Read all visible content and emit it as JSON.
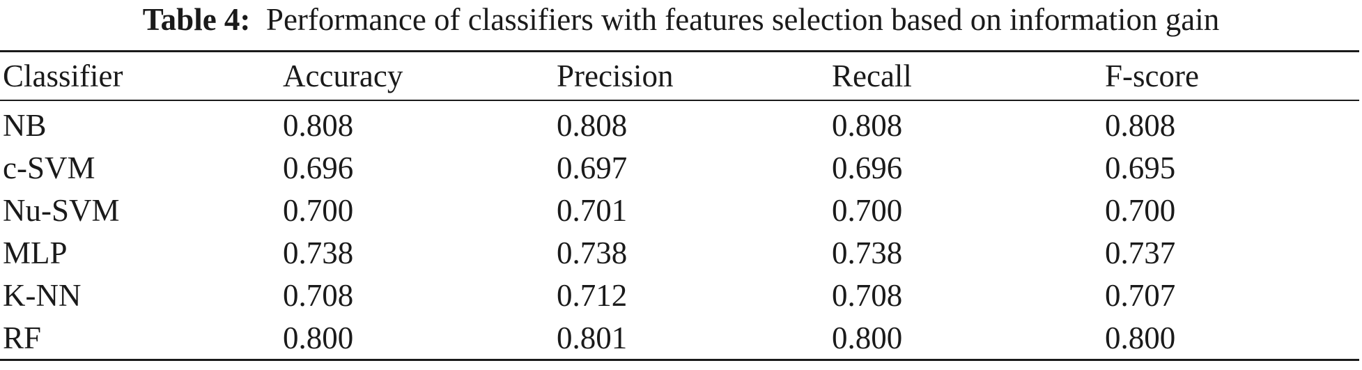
{
  "caption": {
    "label": "Table 4:",
    "text": "Performance of classifiers with features selection based on information gain"
  },
  "table": {
    "headers": [
      "Classifier",
      "Accuracy",
      "Precision",
      "Recall",
      "F-score"
    ],
    "rows": [
      [
        "NB",
        "0.808",
        "0.808",
        "0.808",
        "0.808"
      ],
      [
        "c-SVM",
        "0.696",
        "0.697",
        "0.696",
        "0.695"
      ],
      [
        "Nu-SVM",
        "0.700",
        "0.701",
        "0.700",
        "0.700"
      ],
      [
        "MLP",
        "0.738",
        "0.738",
        "0.738",
        "0.737"
      ],
      [
        "K-NN",
        "0.708",
        "0.712",
        "0.708",
        "0.707"
      ],
      [
        "RF",
        "0.800",
        "0.801",
        "0.800",
        "0.800"
      ]
    ]
  }
}
